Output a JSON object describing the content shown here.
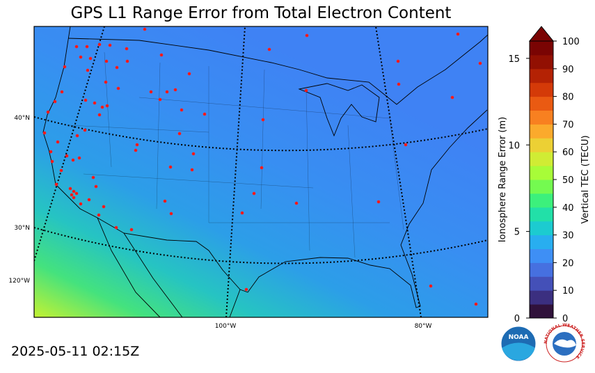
{
  "title": "GPS L1 Range Error from Total Electron Content",
  "timestamp": "2025-05-11 02:15Z",
  "map": {
    "graticule_labels": {
      "lat": [
        "40°N",
        "30°N"
      ],
      "lon": [
        "120°W",
        "100°W",
        "80°W"
      ]
    }
  },
  "colorbar": {
    "left_axis": {
      "label": "Ionosphere Range Error (m)",
      "lim": [
        0,
        16
      ],
      "ticks": [
        0,
        5,
        10,
        15
      ]
    },
    "right_axis": {
      "label": "Vertical TEC (TECU)",
      "lim": [
        0,
        100
      ],
      "ticks": [
        0,
        10,
        20,
        30,
        40,
        50,
        60,
        70,
        80,
        90,
        100
      ]
    },
    "colors": [
      "#30123b",
      "#3b2f80",
      "#4450b8",
      "#4670e0",
      "#3e8ff5",
      "#28aef0",
      "#1ccbd0",
      "#22e0a8",
      "#3cf07c",
      "#74fa50",
      "#a8fc38",
      "#d0ec34",
      "#ecd034",
      "#fbaa2c",
      "#f88020",
      "#ea5a12",
      "#d43a08",
      "#b42204",
      "#921002",
      "#7a0403"
    ],
    "extend_color": "#7a0403"
  },
  "logos": {
    "noaa": "NOAA",
    "nws": "NATIONAL WEATHER SERVICE"
  }
}
